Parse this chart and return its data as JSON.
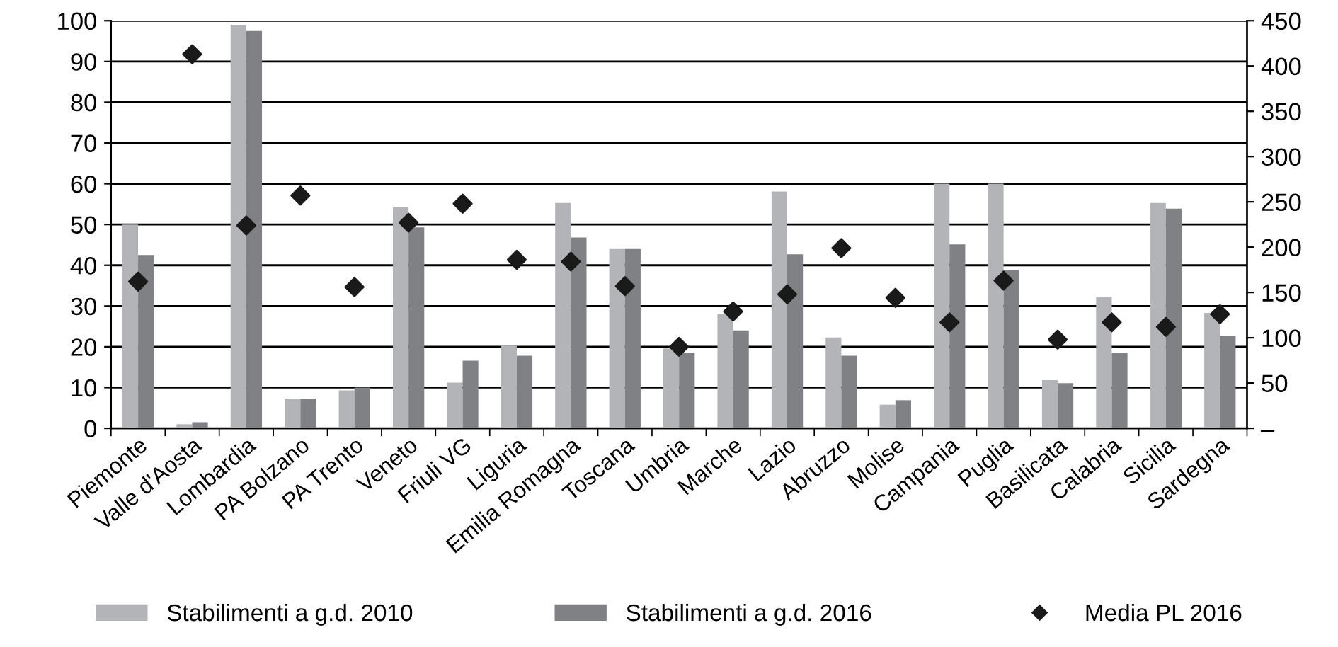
{
  "chart_data": {
    "type": "bar",
    "categories": [
      "Piemonte",
      "Valle d'Aosta",
      "Lombardia",
      "PA Bolzano",
      "PA Trento",
      "Veneto",
      "Friuli VG",
      "Liguria",
      "Emilia Romagna",
      "Toscana",
      "Umbria",
      "Marche",
      "Lazio",
      "Abruzzo",
      "Molise",
      "Campania",
      "Puglia",
      "Basilicata",
      "Calabria",
      "Sicilia",
      "Sardegna"
    ],
    "series": [
      {
        "name": "Stabilimenti a g.d. 2010",
        "color": "#b3b4b7",
        "values": [
          50,
          1,
          99,
          7.3,
          9.3,
          54.3,
          11.2,
          20.3,
          55.3,
          44,
          19.6,
          28,
          58.1,
          22.3,
          5.8,
          60,
          60,
          11.8,
          32.2,
          55.3,
          28.3
        ]
      },
      {
        "name": "Stabilimenti a g.d. 2016",
        "color": "#808185",
        "values": [
          42.5,
          1.5,
          97.5,
          7.3,
          10,
          49.3,
          16.6,
          17.8,
          46.8,
          44,
          18.5,
          24,
          42.7,
          17.8,
          6.9,
          45.1,
          38.8,
          11.1,
          18.5,
          53.9,
          22.7
        ]
      },
      {
        "name": "Media PL 2016",
        "type": "scatter",
        "axis": "y2",
        "color": "#1a1a1a",
        "marker": "diamond",
        "values": [
          162,
          413,
          224,
          257,
          156,
          227,
          248,
          186,
          184,
          157,
          90,
          129,
          148,
          199,
          144,
          117,
          163,
          98,
          117,
          112,
          126
        ]
      }
    ],
    "ylim": [
      0,
      100
    ],
    "yticks": [
      0,
      10,
      20,
      30,
      40,
      50,
      60,
      70,
      80,
      90,
      100
    ],
    "y2lim": [
      0,
      450
    ],
    "y2ticks": [
      {
        "value": 0,
        "label": "–"
      },
      50,
      100,
      150,
      200,
      250,
      300,
      350,
      400,
      450
    ],
    "grid": "y",
    "legend": "bottom"
  }
}
